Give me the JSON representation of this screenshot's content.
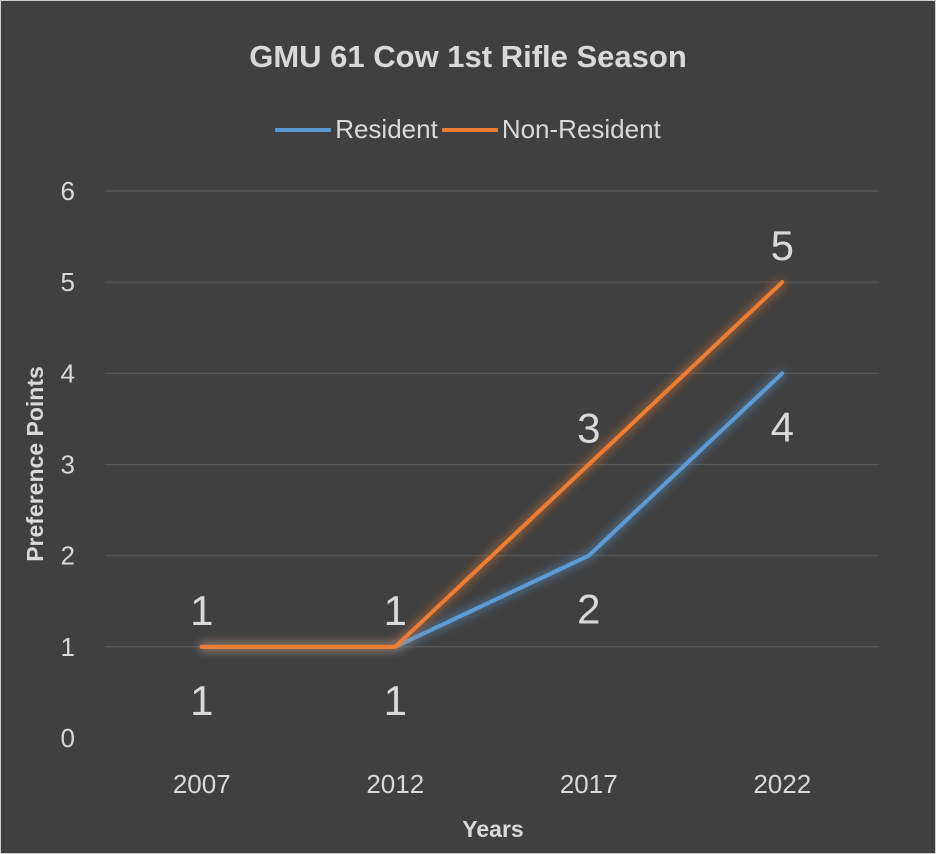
{
  "chart_data": {
    "type": "line",
    "title": "GMU 61 Cow 1st Rifle Season",
    "xlabel": "Years",
    "ylabel": "Preference Points",
    "categories": [
      "2007",
      "2012",
      "2017",
      "2022"
    ],
    "ylim": [
      0,
      6
    ],
    "yticks": [
      "0",
      "1",
      "2",
      "3",
      "4",
      "5",
      "6"
    ],
    "grid": true,
    "legend_position": "top",
    "series": [
      {
        "name": "Resident",
        "color": "#5b9bd5",
        "values": [
          1,
          1,
          2,
          4
        ],
        "labels": [
          "1",
          "1",
          "2",
          "4"
        ]
      },
      {
        "name": "Non-Resident",
        "color": "#ed7d31",
        "values": [
          1,
          1,
          3,
          5
        ],
        "labels": [
          "1",
          "1",
          "3",
          "5"
        ]
      }
    ]
  },
  "colors": {
    "background": "#404040",
    "text": "#d9d9d9",
    "grid": "#5a5a5a"
  }
}
